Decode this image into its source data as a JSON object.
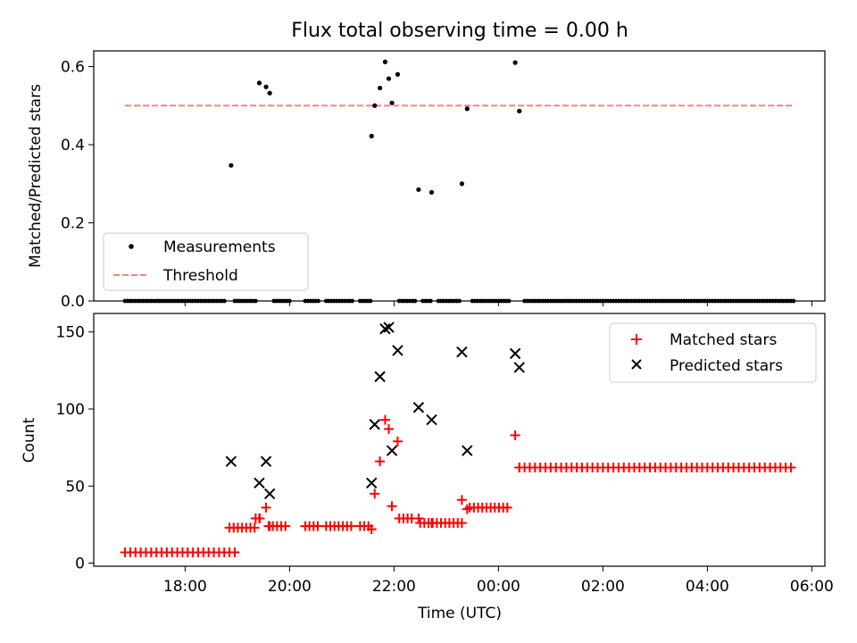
{
  "title": "Flux total observing time = 0.00 h",
  "colors": {
    "threshold": "#ff8080",
    "matched": "#ff0000",
    "predicted": "#000000",
    "measurements": "#000000"
  },
  "chart_data": [
    {
      "type": "scatter",
      "ylabel": "Matched/Predicted stars",
      "xlim": [
        -1.75,
        12.25
      ],
      "ylim": [
        0,
        0.64
      ],
      "yticks": [
        0.0,
        0.2,
        0.4,
        0.6
      ],
      "ytick_labels": [
        "0.0",
        "0.2",
        "0.4",
        "0.6"
      ],
      "legend": {
        "placement": "lower-left",
        "entries": [
          "Measurements",
          "Threshold"
        ]
      },
      "threshold": {
        "name": "Threshold",
        "value": 0.5,
        "x_range": [
          -1.15,
          11.65
        ]
      },
      "series": [
        {
          "name": "Measurements",
          "x": [
            0.88,
            1.42,
            1.55,
            1.62,
            3.57,
            3.63,
            3.73,
            3.83,
            3.9,
            3.96,
            4.07,
            4.47,
            4.72,
            5.3,
            5.4,
            6.32,
            6.4
          ],
          "y": [
            0.347,
            0.558,
            0.548,
            0.532,
            0.422,
            0.5,
            0.545,
            0.612,
            0.569,
            0.507,
            0.58,
            0.285,
            0.278,
            0.3,
            0.492,
            0.61,
            0.486
          ]
        },
        {
          "name": "Measurements-zero",
          "zero_segments": [
            [
              -1.15,
              0.75
            ],
            [
              0.95,
              1.35
            ],
            [
              1.7,
              2.0
            ],
            [
              2.3,
              2.55
            ],
            [
              2.7,
              3.2
            ],
            [
              3.35,
              3.55
            ],
            [
              4.1,
              4.4
            ],
            [
              4.55,
              4.7
            ],
            [
              4.85,
              5.25
            ],
            [
              5.5,
              6.2
            ],
            [
              6.5,
              11.65
            ]
          ]
        }
      ]
    },
    {
      "type": "scatter",
      "ylabel": "Count",
      "xlabel": "Time (UTC)",
      "xlim": [
        -1.75,
        12.25
      ],
      "ylim": [
        -2,
        162
      ],
      "yticks": [
        0,
        50,
        100,
        150
      ],
      "ytick_labels": [
        "0",
        "50",
        "100",
        "150"
      ],
      "xticks": [
        0,
        2,
        4,
        6,
        8,
        10,
        12
      ],
      "xtick_labels": [
        "18:00",
        "20:00",
        "22:00",
        "00:00",
        "02:00",
        "04:00",
        "06:00"
      ],
      "legend": {
        "placement": "top-right",
        "entries": [
          "Matched stars",
          "Predicted stars"
        ]
      },
      "series": [
        {
          "name": "Matched stars",
          "x": [
            1.42,
            1.55,
            1.62,
            3.57,
            3.63,
            3.73,
            3.83,
            3.9,
            3.96,
            4.07,
            4.47,
            4.72,
            5.3,
            5.4,
            6.32,
            6.4
          ],
          "y": [
            29,
            36,
            24,
            22,
            45,
            66,
            93,
            87,
            37,
            79,
            29,
            26,
            41,
            35,
            83,
            62
          ],
          "runs": [
            {
              "from": -1.15,
              "to": 0.95,
              "y": 7,
              "step": 0.1
            },
            {
              "from": 0.85,
              "to": 1.35,
              "y": 23,
              "step": 0.08
            },
            {
              "from": 1.35,
              "to": 1.5,
              "y": 29,
              "step": 0.08
            },
            {
              "from": 1.6,
              "to": 1.95,
              "y": 24,
              "step": 0.08
            },
            {
              "from": 2.3,
              "to": 2.55,
              "y": 24,
              "step": 0.08
            },
            {
              "from": 2.7,
              "to": 3.2,
              "y": 24,
              "step": 0.08
            },
            {
              "from": 3.35,
              "to": 3.55,
              "y": 24,
              "step": 0.08
            },
            {
              "from": 4.1,
              "to": 4.4,
              "y": 29,
              "step": 0.08
            },
            {
              "from": 4.5,
              "to": 5.3,
              "y": 26,
              "step": 0.08
            },
            {
              "from": 5.45,
              "to": 6.2,
              "y": 36,
              "step": 0.08
            },
            {
              "from": 6.4,
              "to": 11.65,
              "y": 62,
              "step": 0.1
            }
          ]
        },
        {
          "name": "Predicted stars",
          "x": [
            0.88,
            1.42,
            1.55,
            1.62,
            3.57,
            3.63,
            3.73,
            3.83,
            3.9,
            3.96,
            4.07,
            4.47,
            4.72,
            5.3,
            5.4,
            6.32,
            6.4
          ],
          "y": [
            66,
            52,
            66,
            45,
            52,
            90,
            121,
            152,
            153,
            73,
            138,
            101,
            93,
            137,
            73,
            136,
            127
          ]
        }
      ]
    }
  ]
}
